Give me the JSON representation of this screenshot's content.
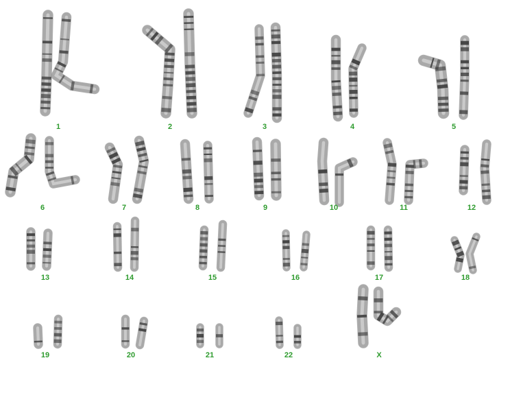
{
  "colors": {
    "label": "#2e9b2e",
    "chromatid_light": "#ececec",
    "chromatid_mid": "#a9a9a9",
    "band_dark": "#3f3f3f",
    "outline": "#777777"
  },
  "pairs": [
    {
      "label": "1"
    },
    {
      "label": "2"
    },
    {
      "label": "3"
    },
    {
      "label": "4"
    },
    {
      "label": "5"
    },
    {
      "label": "6"
    },
    {
      "label": "7"
    },
    {
      "label": "8"
    },
    {
      "label": "9"
    },
    {
      "label": "10"
    },
    {
      "label": "11"
    },
    {
      "label": "12"
    },
    {
      "label": "13"
    },
    {
      "label": "14"
    },
    {
      "label": "15"
    },
    {
      "label": "16"
    },
    {
      "label": "17"
    },
    {
      "label": "18"
    },
    {
      "label": "19"
    },
    {
      "label": "20"
    },
    {
      "label": "21"
    },
    {
      "label": "22"
    },
    {
      "label": "X"
    }
  ]
}
